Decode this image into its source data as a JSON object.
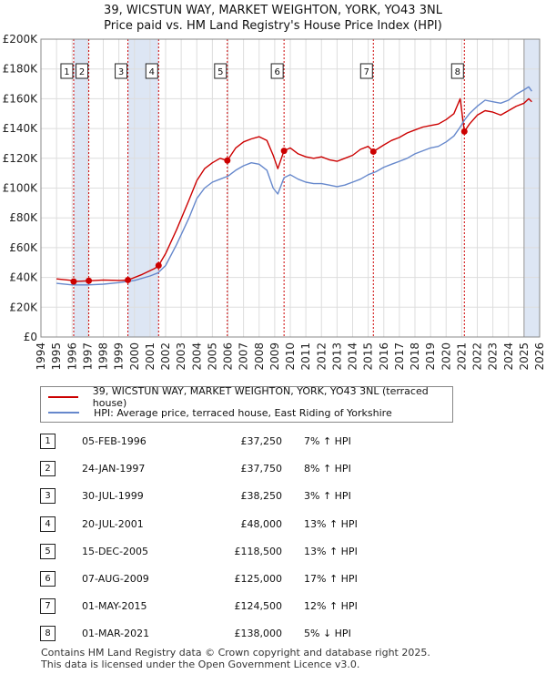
{
  "title": "39, WICSTUN WAY, MARKET WEIGHTON, YORK, YO43 3NL",
  "subtitle": "Price paid vs. HM Land Registry's House Price Index (HPI)",
  "colors": {
    "property": "#cc0000",
    "hpi": "#6688cc",
    "shade": "#dde6f4",
    "marker": "#cc0000"
  },
  "chart_data": {
    "type": "line",
    "title": "39, WICSTUN WAY, MARKET WEIGHTON, YORK, YO43 3NL",
    "xlim": [
      1994,
      2026
    ],
    "ylim": [
      0,
      200000
    ],
    "ytick_values": [
      0,
      20000,
      40000,
      60000,
      80000,
      100000,
      120000,
      140000,
      160000,
      180000,
      200000
    ],
    "ytick_labels": [
      "£0",
      "£20K",
      "£40K",
      "£60K",
      "£80K",
      "£100K",
      "£120K",
      "£140K",
      "£160K",
      "£180K",
      "£200K"
    ],
    "xtick_labels": [
      "1994",
      "1995",
      "1996",
      "1997",
      "1998",
      "1999",
      "2000",
      "2001",
      "2002",
      "2003",
      "2004",
      "2005",
      "2006",
      "2007",
      "2008",
      "2009",
      "2010",
      "2011",
      "2012",
      "2013",
      "2014",
      "2015",
      "2016",
      "2017",
      "2018",
      "2019",
      "2020",
      "2021",
      "2022",
      "2023",
      "2024",
      "2025",
      "2026"
    ],
    "shaded_periods": [
      [
        1996.1,
        1997.07
      ],
      [
        1999.58,
        2001.55
      ],
      [
        2025.0,
        2026.0
      ]
    ],
    "series": [
      {
        "name": "39, WICSTUN WAY, MARKET WEIGHTON, YORK, YO43 3NL (terraced house)",
        "points": [
          [
            1995.0,
            39000
          ],
          [
            1996.0,
            38000
          ],
          [
            1996.1,
            37250
          ],
          [
            1997.07,
            37750
          ],
          [
            1998.0,
            38300
          ],
          [
            1999.0,
            38000
          ],
          [
            1999.58,
            38250
          ],
          [
            2000.5,
            42000
          ],
          [
            2001.3,
            46000
          ],
          [
            2001.55,
            48000
          ],
          [
            2002.0,
            56000
          ],
          [
            2002.7,
            72000
          ],
          [
            2003.5,
            92000
          ],
          [
            2004.0,
            105000
          ],
          [
            2004.5,
            113000
          ],
          [
            2005.0,
            117000
          ],
          [
            2005.5,
            120000
          ],
          [
            2005.96,
            118500
          ],
          [
            2006.5,
            127000
          ],
          [
            2007.0,
            131000
          ],
          [
            2007.5,
            133000
          ],
          [
            2008.0,
            134500
          ],
          [
            2008.5,
            132000
          ],
          [
            2008.9,
            122000
          ],
          [
            2009.2,
            113000
          ],
          [
            2009.6,
            125000
          ],
          [
            2010.0,
            127000
          ],
          [
            2010.5,
            123000
          ],
          [
            2011.0,
            121000
          ],
          [
            2011.5,
            120000
          ],
          [
            2012.0,
            121000
          ],
          [
            2012.5,
            119000
          ],
          [
            2013.0,
            118000
          ],
          [
            2013.5,
            120000
          ],
          [
            2014.0,
            122000
          ],
          [
            2014.5,
            126000
          ],
          [
            2015.0,
            128000
          ],
          [
            2015.33,
            124500
          ],
          [
            2016.0,
            129000
          ],
          [
            2016.5,
            132000
          ],
          [
            2017.0,
            134000
          ],
          [
            2017.5,
            137000
          ],
          [
            2018.0,
            139000
          ],
          [
            2018.5,
            141000
          ],
          [
            2019.0,
            142000
          ],
          [
            2019.5,
            143000
          ],
          [
            2020.0,
            146000
          ],
          [
            2020.5,
            150000
          ],
          [
            2020.9,
            160000
          ],
          [
            2021.17,
            138000
          ],
          [
            2021.5,
            143000
          ],
          [
            2022.0,
            149000
          ],
          [
            2022.5,
            152000
          ],
          [
            2023.0,
            151000
          ],
          [
            2023.5,
            149000
          ],
          [
            2024.0,
            152000
          ],
          [
            2024.5,
            155000
          ],
          [
            2025.0,
            157000
          ],
          [
            2025.3,
            160000
          ],
          [
            2025.5,
            158000
          ]
        ]
      },
      {
        "name": "HPI: Average price, terraced house, East Riding of Yorkshire",
        "points": [
          [
            1995.0,
            36000
          ],
          [
            1996.0,
            35000
          ],
          [
            1997.0,
            35000
          ],
          [
            1998.0,
            35500
          ],
          [
            1999.0,
            36500
          ],
          [
            2000.0,
            38000
          ],
          [
            2001.0,
            41000
          ],
          [
            2001.5,
            43000
          ],
          [
            2002.0,
            48000
          ],
          [
            2002.7,
            62000
          ],
          [
            2003.5,
            80000
          ],
          [
            2004.0,
            93000
          ],
          [
            2004.5,
            100000
          ],
          [
            2005.0,
            104000
          ],
          [
            2005.5,
            106000
          ],
          [
            2006.0,
            108000
          ],
          [
            2006.5,
            112000
          ],
          [
            2007.0,
            115000
          ],
          [
            2007.5,
            117000
          ],
          [
            2008.0,
            116000
          ],
          [
            2008.5,
            112000
          ],
          [
            2008.9,
            100000
          ],
          [
            2009.2,
            96000
          ],
          [
            2009.6,
            107000
          ],
          [
            2010.0,
            109000
          ],
          [
            2010.5,
            106000
          ],
          [
            2011.0,
            104000
          ],
          [
            2011.5,
            103000
          ],
          [
            2012.0,
            103000
          ],
          [
            2012.5,
            102000
          ],
          [
            2013.0,
            101000
          ],
          [
            2013.5,
            102000
          ],
          [
            2014.0,
            104000
          ],
          [
            2014.5,
            106000
          ],
          [
            2015.0,
            109000
          ],
          [
            2015.5,
            111000
          ],
          [
            2016.0,
            114000
          ],
          [
            2016.5,
            116000
          ],
          [
            2017.0,
            118000
          ],
          [
            2017.5,
            120000
          ],
          [
            2018.0,
            123000
          ],
          [
            2018.5,
            125000
          ],
          [
            2019.0,
            127000
          ],
          [
            2019.5,
            128000
          ],
          [
            2020.0,
            131000
          ],
          [
            2020.5,
            135000
          ],
          [
            2020.9,
            141000
          ],
          [
            2021.2,
            146000
          ],
          [
            2021.5,
            150000
          ],
          [
            2022.0,
            155000
          ],
          [
            2022.5,
            159000
          ],
          [
            2023.0,
            158000
          ],
          [
            2023.5,
            157000
          ],
          [
            2024.0,
            159000
          ],
          [
            2024.5,
            163000
          ],
          [
            2025.0,
            166000
          ],
          [
            2025.3,
            168000
          ],
          [
            2025.5,
            165000
          ]
        ]
      }
    ],
    "sale_markers": [
      {
        "label": "1",
        "date": 1996.1,
        "price": 37250
      },
      {
        "label": "2",
        "date": 1997.07,
        "price": 37750
      },
      {
        "label": "3",
        "date": 1999.58,
        "price": 38250
      },
      {
        "label": "4",
        "date": 2001.55,
        "price": 48000
      },
      {
        "label": "5",
        "date": 2005.96,
        "price": 118500
      },
      {
        "label": "6",
        "date": 2009.6,
        "price": 125000
      },
      {
        "label": "7",
        "date": 2015.33,
        "price": 124500
      },
      {
        "label": "8",
        "date": 2021.17,
        "price": 138000
      }
    ]
  },
  "legend": {
    "property": "39, WICSTUN WAY, MARKET WEIGHTON, YORK, YO43 3NL (terraced house)",
    "hpi": "HPI: Average price, terraced house, East Riding of Yorkshire"
  },
  "sales": [
    {
      "num": "1",
      "date": "05-FEB-1996",
      "price": "£37,250",
      "pct": "7% ↑ HPI"
    },
    {
      "num": "2",
      "date": "24-JAN-1997",
      "price": "£37,750",
      "pct": "8% ↑ HPI"
    },
    {
      "num": "3",
      "date": "30-JUL-1999",
      "price": "£38,250",
      "pct": "3% ↑ HPI"
    },
    {
      "num": "4",
      "date": "20-JUL-2001",
      "price": "£48,000",
      "pct": "13% ↑ HPI"
    },
    {
      "num": "5",
      "date": "15-DEC-2005",
      "price": "£118,500",
      "pct": "13% ↑ HPI"
    },
    {
      "num": "6",
      "date": "07-AUG-2009",
      "price": "£125,000",
      "pct": "17% ↑ HPI"
    },
    {
      "num": "7",
      "date": "01-MAY-2015",
      "price": "£124,500",
      "pct": "12% ↑ HPI"
    },
    {
      "num": "8",
      "date": "01-MAR-2021",
      "price": "£138,000",
      "pct": "5% ↓ HPI"
    }
  ],
  "footer": {
    "line1": "Contains HM Land Registry data © Crown copyright and database right 2025.",
    "line2": "This data is licensed under the Open Government Licence v3.0."
  }
}
